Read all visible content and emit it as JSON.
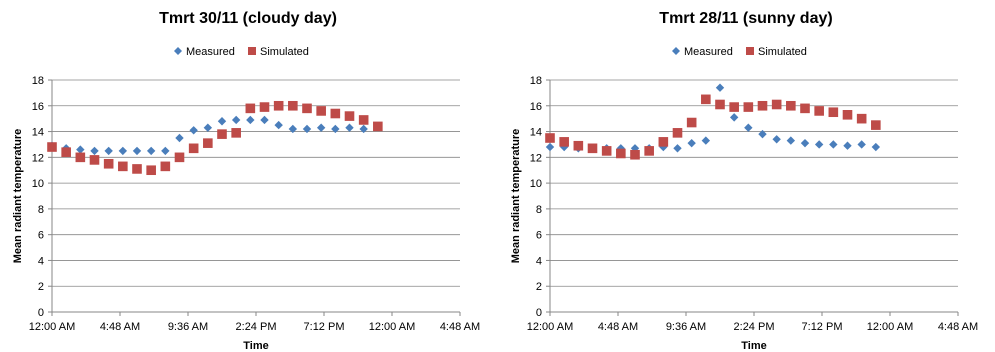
{
  "chart_data": [
    {
      "type": "scatter",
      "title": "Tmrt 30/11 (cloudy day)",
      "xlabel": "Time",
      "ylabel": "Mean radiant temperature",
      "ylim": [
        0,
        18
      ],
      "yticks": [
        0,
        2,
        4,
        6,
        8,
        10,
        12,
        14,
        16,
        18
      ],
      "xlim_hours": [
        0,
        28.8
      ],
      "xtick_labels": [
        "12:00 AM",
        "4:48 AM",
        "9:36 AM",
        "2:24 PM",
        "7:12 PM",
        "12:00 AM",
        "4:48 AM"
      ],
      "grid": "horizontal",
      "legend_position": "top",
      "series": [
        {
          "name": "Measured",
          "color": "#4a7ebb",
          "marker": "diamond",
          "x_hours": [
            0,
            1,
            2,
            3,
            4,
            5,
            6,
            7,
            8,
            9,
            10,
            11,
            12,
            13,
            14,
            15,
            16,
            17,
            18,
            19,
            20,
            21,
            22
          ],
          "values": [
            12.9,
            12.7,
            12.6,
            12.5,
            12.5,
            12.5,
            12.5,
            12.5,
            12.5,
            13.5,
            14.1,
            14.3,
            14.8,
            14.9,
            14.9,
            14.9,
            14.5,
            14.2,
            14.2,
            14.3,
            14.2,
            14.3,
            14.2
          ]
        },
        {
          "name": "Simulated",
          "color": "#be4b48",
          "marker": "square",
          "x_hours": [
            0,
            1,
            2,
            3,
            4,
            5,
            6,
            7,
            8,
            9,
            10,
            11,
            12,
            13,
            14,
            15,
            16,
            17,
            18,
            19,
            20,
            21,
            22,
            23
          ],
          "values": [
            12.8,
            12.4,
            12.0,
            11.8,
            11.5,
            11.3,
            11.1,
            11.0,
            11.3,
            12.0,
            12.7,
            13.1,
            13.8,
            13.9,
            15.8,
            15.9,
            16.0,
            16.0,
            15.8,
            15.6,
            15.4,
            15.2,
            14.9,
            14.4
          ]
        }
      ]
    },
    {
      "type": "scatter",
      "title": "Tmrt 28/11 (sunny day)",
      "xlabel": "Time",
      "ylabel": "Mean radiant temperature",
      "ylim": [
        0,
        18
      ],
      "yticks": [
        0,
        2,
        4,
        6,
        8,
        10,
        12,
        14,
        16,
        18
      ],
      "xlim_hours": [
        0,
        28.8
      ],
      "xtick_labels": [
        "12:00 AM",
        "4:48 AM",
        "9:36 AM",
        "2:24 PM",
        "7:12 PM",
        "12:00 AM",
        "4:48 AM"
      ],
      "grid": "horizontal",
      "legend_position": "top",
      "series": [
        {
          "name": "Measured",
          "color": "#4a7ebb",
          "marker": "diamond",
          "x_hours": [
            0,
            1,
            2,
            3,
            4,
            5,
            6,
            7,
            8,
            9,
            10,
            11,
            12,
            13,
            14,
            15,
            16,
            17,
            18,
            19,
            20,
            21,
            22,
            23
          ],
          "values": [
            12.8,
            12.8,
            12.7,
            12.7,
            12.7,
            12.7,
            12.7,
            12.7,
            12.8,
            12.7,
            13.1,
            13.3,
            17.4,
            15.1,
            14.3,
            13.8,
            13.4,
            13.3,
            13.1,
            13.0,
            13.0,
            12.9,
            13.0,
            12.8
          ]
        },
        {
          "name": "Simulated",
          "color": "#be4b48",
          "marker": "square",
          "x_hours": [
            0,
            1,
            2,
            3,
            4,
            5,
            6,
            7,
            8,
            9,
            10,
            11,
            12,
            13,
            14,
            15,
            16,
            17,
            18,
            19,
            20,
            21,
            22,
            23
          ],
          "values": [
            13.5,
            13.2,
            12.9,
            12.7,
            12.5,
            12.3,
            12.2,
            12.5,
            13.2,
            13.9,
            14.7,
            16.5,
            16.1,
            15.9,
            15.9,
            16.0,
            16.1,
            16.0,
            15.8,
            15.6,
            15.5,
            15.3,
            15.0,
            14.5
          ]
        }
      ]
    }
  ]
}
